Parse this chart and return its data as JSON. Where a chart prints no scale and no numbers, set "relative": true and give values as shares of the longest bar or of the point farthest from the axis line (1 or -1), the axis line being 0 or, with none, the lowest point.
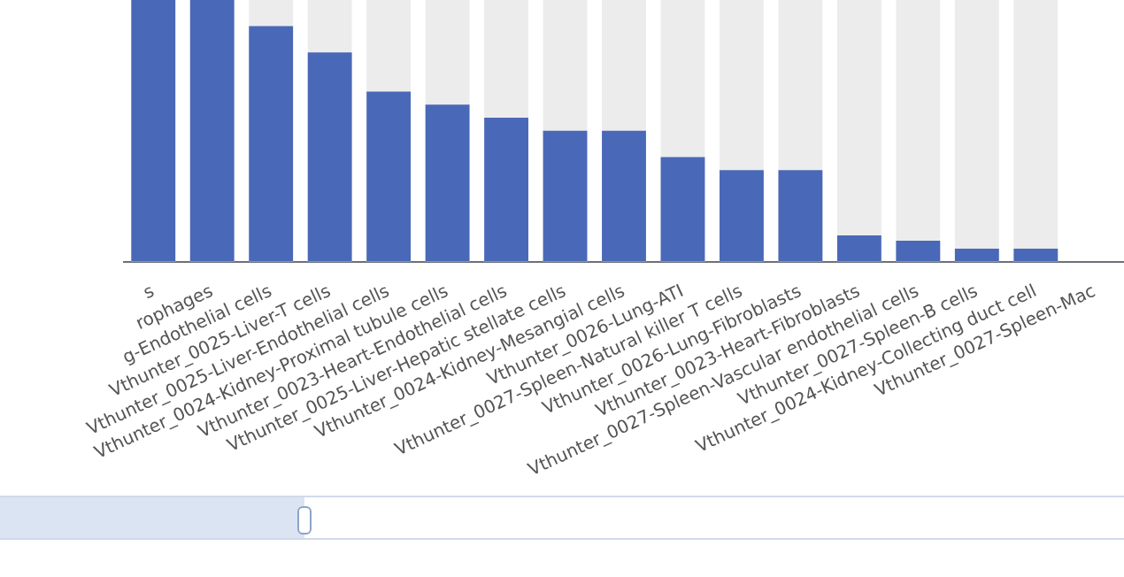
{
  "chart_data": {
    "type": "bar",
    "relative": true,
    "color": "#4a68b8",
    "categories": [
      "s",
      "rophages",
      "g-Endothelial cells",
      "Vthunter_0025-Liver-T cells",
      "Vthunter_0025-Liver-Endothelial cells",
      "Vthunter_0024-Kidney-Proximal tubule cells",
      "Vthunter_0023-Heart-Endothelial cells",
      "Vthunter_0025-Liver-Hepatic stellate cells",
      "Vthunter_0024-Kidney-Mesangial cells",
      "Vthunter_0026-Lung-ATI",
      "Vthunter_0027-Spleen-Natural killer T cells",
      "Vthunter_0026-Lung-Fibroblasts",
      "Vthunter_0023-Heart-Fibroblasts",
      "Vthunter_0027-Spleen-Vascular endothelial cells",
      "Vthunter_0027-Spleen-B cells",
      "Vthunter_0024-Kidney-Collecting duct cell",
      "Vthunter_0027-Spleen-Mac"
    ],
    "values": [
      1,
      1,
      0.9,
      0.8,
      0.65,
      0.6,
      0.55,
      0.5,
      0.5,
      0.4,
      0.35,
      0.35,
      0.1,
      0.08,
      0.05,
      0.05,
      null
    ],
    "legend": false
  }
}
